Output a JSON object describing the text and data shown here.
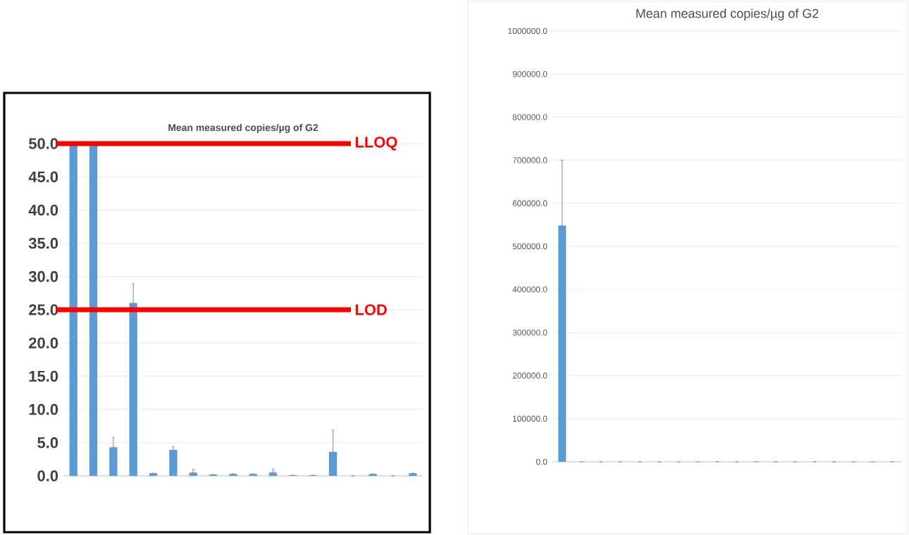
{
  "chart_data": [
    {
      "type": "bar",
      "title": "Mean measured copies/µg of G2",
      "categories": [
        null,
        null,
        null,
        null,
        null,
        null,
        null,
        null,
        null,
        null,
        null,
        null,
        null,
        null,
        null,
        null,
        null,
        null
      ],
      "values": [
        50,
        50,
        4.3,
        26.0,
        0.4,
        3.9,
        0.5,
        0.2,
        0.3,
        0.3,
        0.5,
        0.1,
        0.1,
        3.6,
        0,
        0.3,
        0,
        0.4
      ],
      "errors": [
        null,
        null,
        [
          4.3,
          5.8
        ],
        [
          26.0,
          28.9
        ],
        null,
        [
          3.9,
          4.4
        ],
        [
          0.5,
          1.0
        ],
        null,
        null,
        null,
        [
          0.5,
          1.0
        ],
        null,
        null,
        [
          3.6,
          6.9
        ],
        null,
        null,
        null,
        null
      ],
      "color": "#5b9bd5",
      "ylim": [
        0,
        50
      ],
      "yticks": [
        {
          "value": 0,
          "label": "0.0"
        },
        {
          "value": 5,
          "label": "5.0"
        },
        {
          "value": 10,
          "label": "10.0"
        },
        {
          "value": 15,
          "label": "15.0"
        },
        {
          "value": 20,
          "label": "20.0"
        },
        {
          "value": 25,
          "label": "25.0"
        },
        {
          "value": 30,
          "label": "30.0"
        },
        {
          "value": 35,
          "label": "35.0"
        },
        {
          "value": 40,
          "label": "40.0"
        },
        {
          "value": 45,
          "label": "45.0"
        },
        {
          "value": 50,
          "label": "50.0"
        }
      ],
      "grid": "y",
      "ref_lines": [
        {
          "axis": "y",
          "value": 50,
          "label": "LLOQ",
          "color": "#ff0000"
        },
        {
          "axis": "y",
          "value": 25,
          "label": "LOD",
          "color": "#ff0000"
        }
      ]
    },
    {
      "type": "bar",
      "title": "Mean measured copies/µg of G2",
      "categories": [
        null,
        null,
        null,
        null,
        null,
        null,
        null,
        null,
        null,
        null,
        null,
        null,
        null,
        null,
        null,
        null,
        null,
        null
      ],
      "values": [
        548000,
        0,
        0,
        0,
        0,
        0,
        0,
        0,
        0,
        0,
        0,
        0,
        0,
        0,
        0,
        0,
        0,
        0
      ],
      "errors": [
        [
          548000,
          700000
        ],
        null,
        null,
        null,
        null,
        null,
        null,
        null,
        null,
        null,
        null,
        null,
        null,
        null,
        null,
        null,
        null,
        null
      ],
      "color": "#5b9bd5",
      "ylim": [
        0,
        1000000
      ],
      "yticks": [
        {
          "value": 0,
          "label": "0.0"
        },
        {
          "value": 100000,
          "label": "100000.0"
        },
        {
          "value": 200000,
          "label": "200000.0"
        },
        {
          "value": 300000,
          "label": "300000.0"
        },
        {
          "value": 400000,
          "label": "400000.0"
        },
        {
          "value": 500000,
          "label": "500000.0"
        },
        {
          "value": 600000,
          "label": "600000.0"
        },
        {
          "value": 700000,
          "label": "700000.0"
        },
        {
          "value": 800000,
          "label": "800000.0"
        },
        {
          "value": 900000,
          "label": "900000.0"
        },
        {
          "value": 1000000,
          "label": "1000000.0"
        }
      ],
      "grid": "y"
    }
  ]
}
